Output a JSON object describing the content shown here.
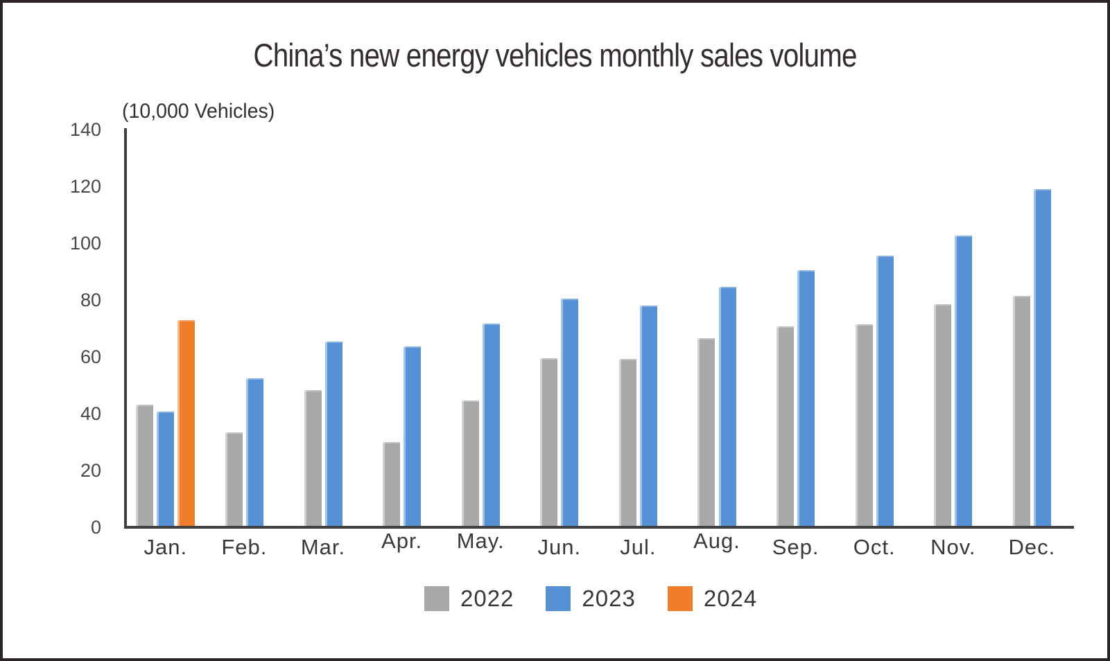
{
  "title": "China’s new energy vehicles monthly sales volume",
  "unit_label": "(10,000 Vehicles)",
  "colors": {
    "series_2022": "#a9a9a9",
    "series_2023": "#5591d4",
    "series_2024": "#ef7d2b",
    "axis": "#413c3d",
    "text": "#3b3637"
  },
  "chart_data": {
    "type": "bar",
    "title": "China’s new energy vehicles monthly sales volume",
    "ylabel": "(10,000 Vehicles)",
    "xlabel": "",
    "categories": [
      "Jan.",
      "Feb.",
      "Mar.",
      "Apr.",
      "May.",
      "Jun.",
      "Jul.",
      "Aug.",
      "Sep.",
      "Oct.",
      "Nov.",
      "Dec."
    ],
    "raised_category_labels": [
      "Apr.",
      "May.",
      "Aug."
    ],
    "y_ticks": [
      0,
      20,
      40,
      60,
      80,
      100,
      120,
      140
    ],
    "ylim": [
      0,
      140
    ],
    "grid": false,
    "legend_position": "bottom",
    "series": [
      {
        "name": "2022",
        "color": "#a9a9a9",
        "values": [
          43.1,
          33.4,
          48.4,
          29.9,
          44.7,
          59.6,
          59.3,
          66.6,
          70.8,
          71.4,
          78.6,
          81.4
        ]
      },
      {
        "name": "2023",
        "color": "#5591d4",
        "values": [
          40.8,
          52.5,
          65.3,
          63.6,
          71.7,
          80.6,
          78.0,
          84.6,
          90.4,
          95.6,
          102.6,
          119.1
        ]
      },
      {
        "name": "2024",
        "color": "#ef7d2b",
        "values": [
          72.9,
          null,
          null,
          null,
          null,
          null,
          null,
          null,
          null,
          null,
          null,
          null
        ]
      }
    ]
  }
}
